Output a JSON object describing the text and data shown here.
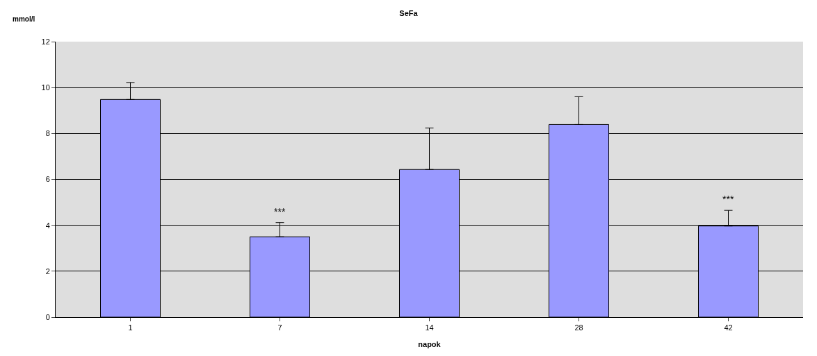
{
  "chart_data": {
    "type": "bar",
    "title": "SeFa",
    "xlabel": "napok",
    "ylabel": "mmol/l",
    "categories": [
      "1",
      "7",
      "14",
      "28",
      "42"
    ],
    "values": [
      9.48,
      3.5,
      6.43,
      8.39,
      3.97
    ],
    "errors": [
      [
        9.48,
        10.22
      ],
      [
        3.5,
        4.12
      ],
      [
        6.43,
        8.24
      ],
      [
        8.39,
        9.6
      ],
      [
        3.97,
        4.65
      ]
    ],
    "color": "#9999ff",
    "ylim": [
      0,
      12
    ],
    "yticks": [
      0,
      2,
      4,
      6,
      8,
      10,
      12
    ],
    "grid": "y",
    "legend": false,
    "annotations": [
      {
        "text": "***",
        "x": "7",
        "y": 4.12
      },
      {
        "text": "***",
        "x": "42",
        "y": 4.65
      }
    ]
  }
}
